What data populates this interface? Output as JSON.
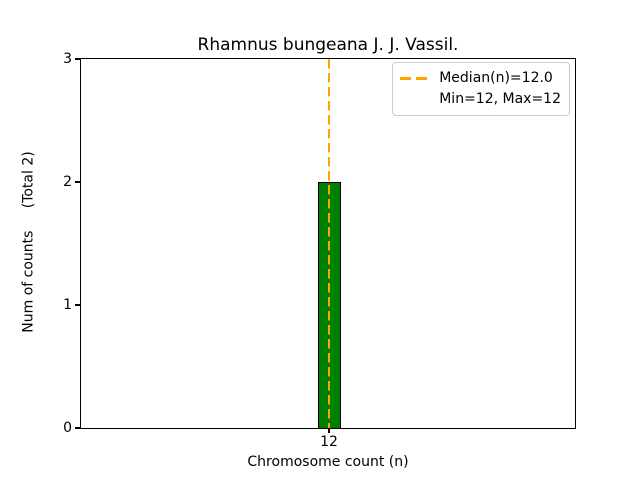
{
  "figure": {
    "background_color": "#ffffff"
  },
  "chart_data": {
    "type": "bar",
    "title": "Rhamnus bungeana J. J. Vassil.",
    "xlabel": "Chromosome count (n)",
    "ylabel": "Num of counts     (Total 2)",
    "categories": [
      "12"
    ],
    "values": [
      2
    ],
    "total_counts": 2,
    "ylim": [
      0,
      3
    ],
    "yticks": [
      0,
      1,
      2,
      3
    ],
    "median": 12.0,
    "min": 12,
    "max": 12,
    "grid": false,
    "bar_color": "#008000",
    "bar_edge_color": "#000000",
    "median_line_color": "#FFA500",
    "legend": {
      "position": "upper right",
      "entries": [
        {
          "label": "Median(n)=12.0",
          "marker": "orange-dashed-line"
        },
        {
          "label": "Min=12, Max=12",
          "marker": "none"
        }
      ]
    }
  }
}
